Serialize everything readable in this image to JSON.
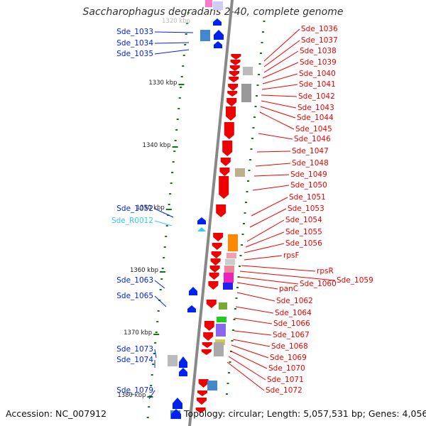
{
  "title": "Saccharophagus degradans 2-40, complete genome",
  "accession": "Accession: NC_007912",
  "genome_info": "Topology: circular; Length: 5,057,531 bp; Genes: 4,056",
  "colors": {
    "forward": "#0022ee",
    "reverse": "#ee0000",
    "rna": "#33ccee",
    "backbone": "#888888",
    "tick": "#117711"
  },
  "scale": {
    "faint_label": "1320 kbp",
    "ticks": [
      {
        "kbp": 1330,
        "label": "1330 kbp"
      },
      {
        "kbp": 1340,
        "label": "1340 kbp"
      },
      {
        "kbp": 1350,
        "label": "1350 kbp"
      },
      {
        "kbp": 1360,
        "label": "1360 kbp"
      },
      {
        "kbp": 1370,
        "label": "1370 kbp"
      },
      {
        "kbp": 1380,
        "label": "1380 kbp"
      }
    ]
  },
  "left_labels": [
    {
      "text": "Sde_1033",
      "kind": "forward"
    },
    {
      "text": "Sde_1034",
      "kind": "forward"
    },
    {
      "text": "Sde_1035",
      "kind": "forward"
    },
    {
      "text": "Sde_1052",
      "kind": "forward"
    },
    {
      "text": "Sde_R0012",
      "kind": "rna"
    },
    {
      "text": "Sde_1063",
      "kind": "forward"
    },
    {
      "text": "Sde_1065",
      "kind": "forward"
    },
    {
      "text": "Sde_1073",
      "kind": "forward"
    },
    {
      "text": "Sde_1074",
      "kind": "forward"
    },
    {
      "text": "Sde_1079",
      "kind": "forward"
    }
  ],
  "right_labels": [
    {
      "text": "Sde_1036"
    },
    {
      "text": "Sde_1037"
    },
    {
      "text": "Sde_1038"
    },
    {
      "text": "Sde_1039"
    },
    {
      "text": "Sde_1040"
    },
    {
      "text": "Sde_1041"
    },
    {
      "text": "Sde_1042"
    },
    {
      "text": "Sde_1043"
    },
    {
      "text": "Sde_1044"
    },
    {
      "text": "Sde_1045"
    },
    {
      "text": "Sde_1046"
    },
    {
      "text": "Sde_1047"
    },
    {
      "text": "Sde_1048"
    },
    {
      "text": "Sde_1049"
    },
    {
      "text": "Sde_1050"
    },
    {
      "text": "Sde_1051"
    },
    {
      "text": "Sde_1053"
    },
    {
      "text": "Sde_1054"
    },
    {
      "text": "Sde_1055"
    },
    {
      "text": "Sde_1056"
    },
    {
      "text": "rpsF"
    },
    {
      "text": "rpsR"
    },
    {
      "text": "Sde_1059"
    },
    {
      "text": "Sde_1060"
    },
    {
      "text": "panC"
    },
    {
      "text": "Sde_1062"
    },
    {
      "text": "Sde_1064"
    },
    {
      "text": "Sde_1066"
    },
    {
      "text": "Sde_1067"
    },
    {
      "text": "Sde_1068"
    },
    {
      "text": "Sde_1069"
    },
    {
      "text": "Sde_1070"
    },
    {
      "text": "Sde_1071"
    },
    {
      "text": "Sde_1072"
    }
  ]
}
